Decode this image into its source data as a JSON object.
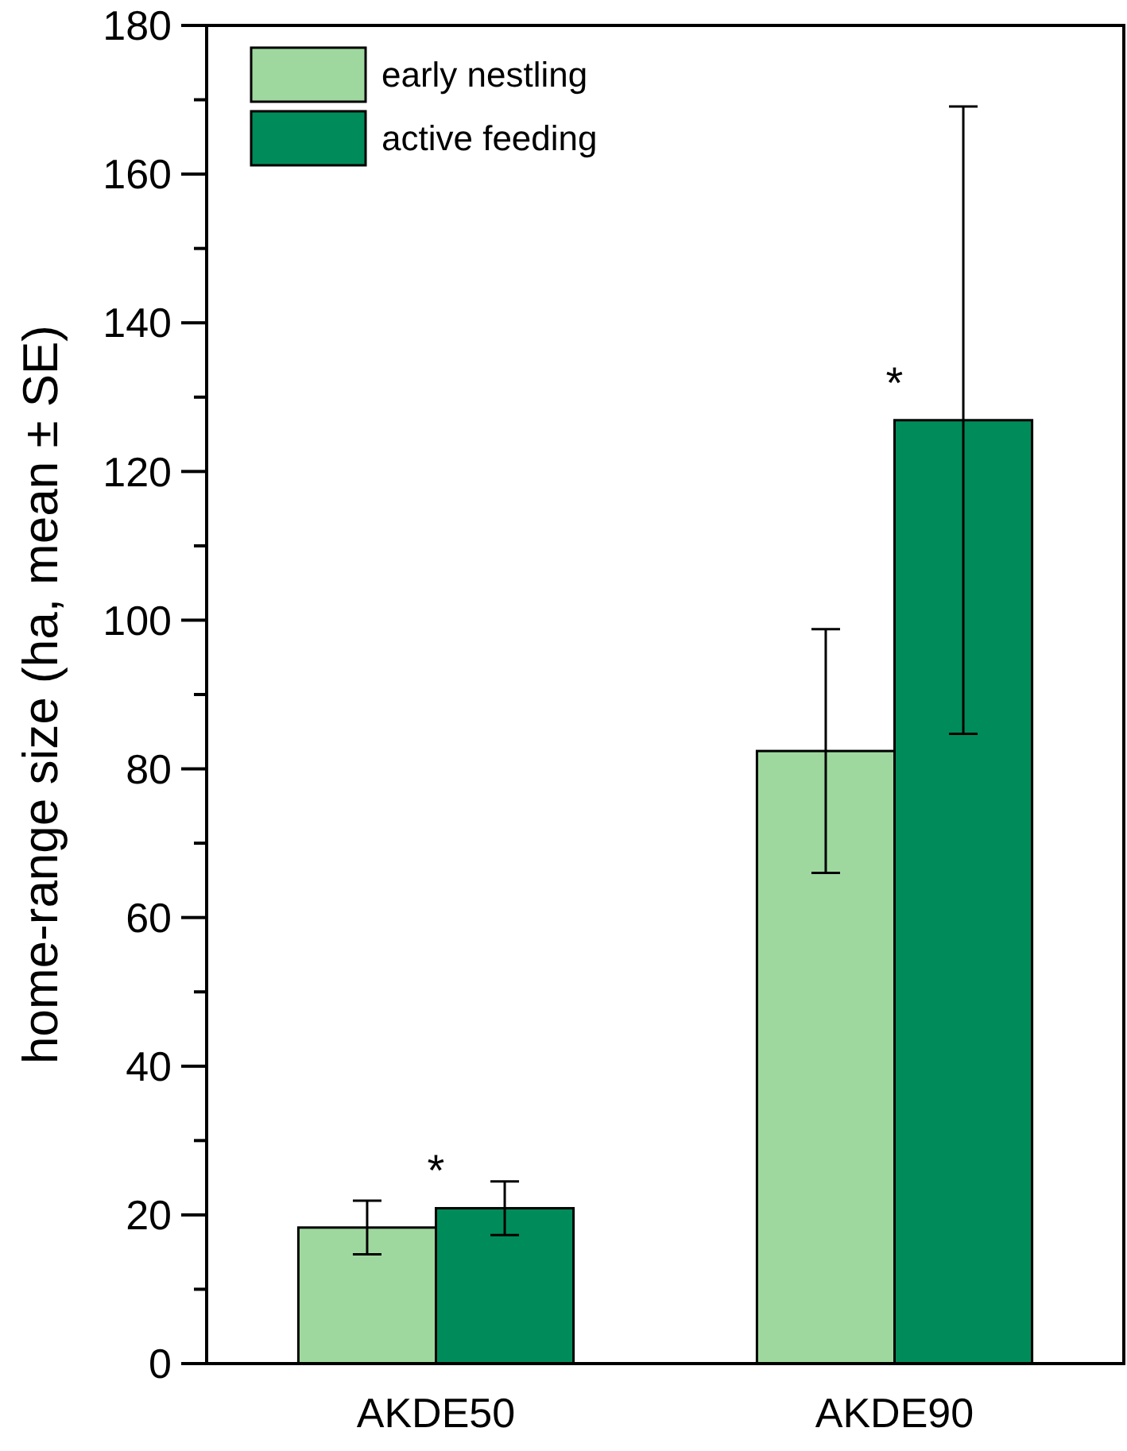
{
  "chart_data": {
    "type": "bar",
    "ylabel": "home-range size (ha, mean ± SE)",
    "categories": [
      "AKDE50",
      "AKDE90"
    ],
    "series": [
      {
        "name": "early nestling",
        "color": "#9fd89f",
        "values": [
          18.3,
          82.4
        ],
        "errors": [
          3.6,
          16.4
        ]
      },
      {
        "name": "active feeding",
        "color": "#008c5a",
        "values": [
          20.9,
          126.9
        ],
        "errors": [
          3.6,
          42.2
        ]
      }
    ],
    "ylim": [
      0,
      180
    ],
    "yticks": [
      0,
      {
        "value": 10,
        "label": null
      },
      20,
      {
        "value": 30,
        "label": null
      },
      40,
      {
        "value": 50,
        "label": null
      },
      60,
      {
        "value": 70,
        "label": null
      },
      80,
      {
        "value": 90,
        "label": null
      },
      100,
      {
        "value": 110,
        "label": null
      },
      120,
      {
        "value": 130,
        "label": null
      },
      140,
      {
        "value": 150,
        "label": null
      },
      160,
      {
        "value": 170,
        "label": null
      },
      180
    ],
    "grid": false,
    "legend": "top left",
    "annotations": [
      "*",
      "*"
    ]
  }
}
